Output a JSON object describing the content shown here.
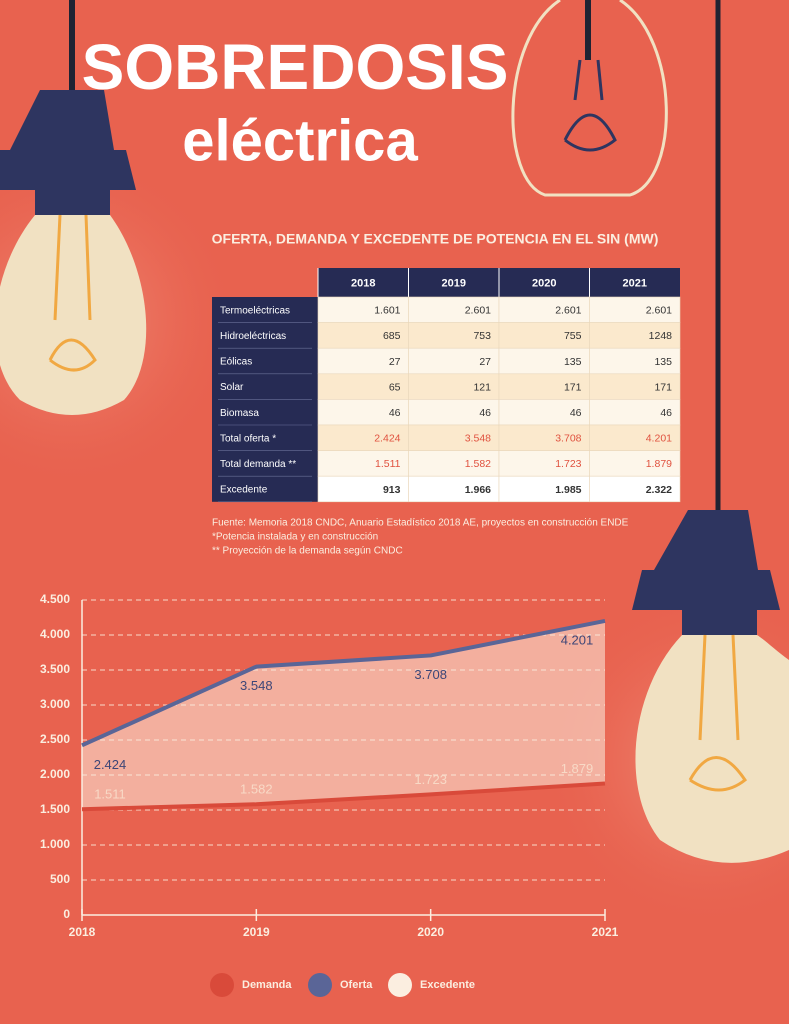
{
  "header": {
    "title_line1": "SOBREDOSIS",
    "title_line2": "eléctrica"
  },
  "table": {
    "title": "OFERTA, DEMANDA Y EXCEDENTE DE POTENCIA EN EL SIN (MW)",
    "columns": [
      "2018",
      "2019",
      "2020",
      "2021"
    ],
    "rows": [
      [
        "Termoeléctricas",
        "1.601",
        "2.601",
        "2.601",
        "2.601"
      ],
      [
        "Hidroeléctricas",
        "685",
        "753",
        "755",
        "1248"
      ],
      [
        "Eólicas",
        "27",
        "27",
        "135",
        "135"
      ],
      [
        "Solar",
        "65",
        "121",
        "171",
        "171"
      ],
      [
        "Biomasa",
        "46",
        "46",
        "46",
        "46"
      ],
      [
        "Total oferta *",
        "2.424",
        "3.548",
        "3.708",
        "4.201"
      ],
      [
        "Total demanda **",
        "1.511",
        "1.582",
        "1.723",
        "1.879"
      ],
      [
        "Excedente",
        "913",
        "1.966",
        "1.985",
        "2.322"
      ]
    ],
    "notes": [
      "Fuente: Memoria 2018 CNDC, Anuario Estadístico 2018 AE, proyectos en construcción ENDE",
      "*Potencia instalada y en construcción",
      "** Proyección de la demanda según CNDC"
    ]
  },
  "chart_data": {
    "type": "area",
    "categories": [
      "2018",
      "2019",
      "2020",
      "2021"
    ],
    "series": [
      {
        "name": "Demanda",
        "color": "#d94a3a",
        "values": [
          1511,
          1582,
          1723,
          1879
        ],
        "value_labels": [
          "1.511",
          "1.582",
          "1.723",
          "1.879"
        ]
      },
      {
        "name": "Oferta",
        "color": "#5a6597",
        "values": [
          2424,
          3548,
          3708,
          4201
        ],
        "value_labels": [
          "2.424",
          "3.548",
          "3.708",
          "4.201"
        ]
      },
      {
        "name": "Excedente",
        "color": "#fbeee0",
        "values": [
          913,
          1966,
          1985,
          2322
        ],
        "stacked_on": "Demanda"
      }
    ],
    "ylim": [
      0,
      4500
    ],
    "yticks": [
      0,
      500,
      {
        "value": 1000,
        "label": "1.000"
      },
      {
        "value": 1500,
        "label": "1.500"
      },
      {
        "value": 2000,
        "label": "2.000"
      },
      {
        "value": 2500,
        "label": "2.500"
      },
      {
        "value": 3000,
        "label": "3.000"
      },
      {
        "value": 3500,
        "label": "3.500"
      },
      {
        "value": 4000,
        "label": "4.000"
      },
      {
        "value": 4500,
        "label": "4.500"
      }
    ],
    "grid": true
  }
}
